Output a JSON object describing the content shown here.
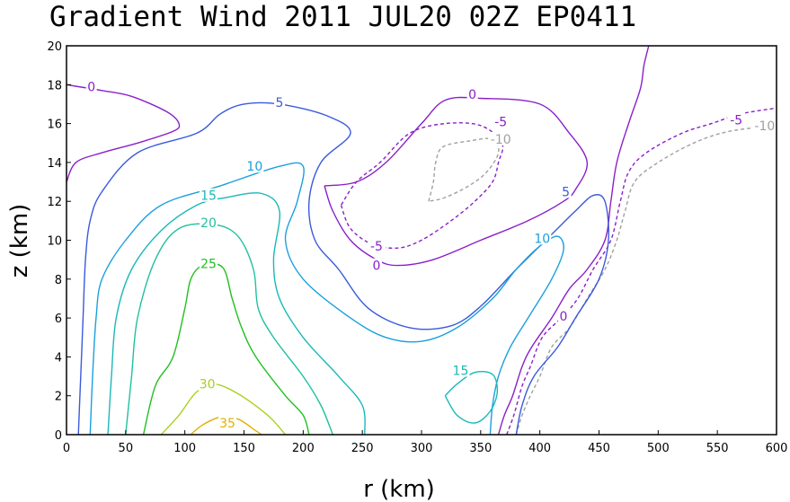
{
  "chart_data": {
    "type": "contour",
    "title": "Gradient Wind 2011 JUL20 02Z  EP0411",
    "xlabel": "r (km)",
    "ylabel": "z (km)",
    "xlim": [
      0,
      600
    ],
    "ylim": [
      0,
      20
    ],
    "xticks": [
      0,
      50,
      100,
      150,
      200,
      250,
      300,
      350,
      400,
      450,
      500,
      550,
      600
    ],
    "yticks": [
      0,
      2,
      4,
      6,
      8,
      10,
      12,
      14,
      16,
      18,
      20
    ],
    "contours": [
      {
        "level": 0,
        "label": "0",
        "color": "#8a20c8",
        "dashed": false,
        "points": [
          [
            0,
            13
          ],
          [
            8,
            14
          ],
          [
            30,
            14.5
          ],
          [
            60,
            15
          ],
          [
            90,
            15.6
          ],
          [
            95,
            16
          ],
          [
            85,
            16.6
          ],
          [
            55,
            17.4
          ],
          [
            30,
            17.7
          ],
          [
            10,
            17.9
          ],
          [
            0,
            18
          ]
        ]
      },
      {
        "level": 0,
        "label": "0",
        "color": "#8a20c8",
        "dashed": false,
        "points": [
          [
            218,
            12.8
          ],
          [
            225,
            11.5
          ],
          [
            240,
            10
          ],
          [
            262,
            9
          ],
          [
            280,
            8.7
          ],
          [
            310,
            9
          ],
          [
            350,
            10
          ],
          [
            390,
            11
          ],
          [
            420,
            12
          ],
          [
            430,
            12.6
          ],
          [
            440,
            14
          ],
          [
            425,
            15.5
          ],
          [
            400,
            17
          ],
          [
            350,
            17.3
          ],
          [
            320,
            17.2
          ],
          [
            300,
            16
          ],
          [
            270,
            14
          ],
          [
            245,
            13
          ],
          [
            218,
            12.8
          ]
        ]
      },
      {
        "level": 0,
        "label": "0",
        "color": "#8a20c8",
        "dashed": false,
        "points": [
          [
            365,
            0
          ],
          [
            370,
            1
          ],
          [
            377,
            2
          ],
          [
            385,
            3.5
          ],
          [
            393,
            4.5
          ],
          [
            410,
            6
          ],
          [
            425,
            7.5
          ],
          [
            440,
            8.5
          ],
          [
            455,
            10
          ],
          [
            460,
            12
          ],
          [
            465,
            14
          ],
          [
            475,
            16
          ],
          [
            485,
            17.8
          ],
          [
            488,
            19
          ],
          [
            492,
            20
          ]
        ]
      },
      {
        "level": -5,
        "label": "-5",
        "color": "#8a20c8",
        "dashed": true,
        "points": [
          [
            232,
            11.8
          ],
          [
            240,
            10.6
          ],
          [
            258,
            9.8
          ],
          [
            280,
            9.6
          ],
          [
            300,
            10
          ],
          [
            325,
            11
          ],
          [
            345,
            12
          ],
          [
            360,
            13
          ],
          [
            365,
            14
          ],
          [
            368,
            15
          ],
          [
            350,
            15.9
          ],
          [
            320,
            16
          ],
          [
            290,
            15.5
          ],
          [
            265,
            14
          ],
          [
            245,
            13
          ],
          [
            232,
            11.8
          ]
        ]
      },
      {
        "level": -5,
        "label": "-5",
        "color": "#8a20c8",
        "dashed": true,
        "points": [
          [
            372,
            0
          ],
          [
            378,
            1
          ],
          [
            385,
            2.5
          ],
          [
            392,
            3.5
          ],
          [
            402,
            5
          ],
          [
            418,
            6
          ],
          [
            432,
            7
          ],
          [
            445,
            8.5
          ],
          [
            460,
            10
          ],
          [
            468,
            12
          ],
          [
            475,
            13.5
          ],
          [
            490,
            14.5
          ],
          [
            520,
            15.5
          ],
          [
            545,
            16
          ],
          [
            570,
            16.5
          ],
          [
            600,
            16.8
          ]
        ]
      },
      {
        "level": -10,
        "label": "-10",
        "color": "#a0a0a0",
        "dashed": true,
        "points": [
          [
            306,
            12
          ],
          [
            310,
            13
          ],
          [
            312,
            14
          ],
          [
            318,
            14.8
          ],
          [
            340,
            15.1
          ],
          [
            360,
            15.2
          ],
          [
            365,
            14.5
          ],
          [
            355,
            13.5
          ],
          [
            340,
            12.8
          ],
          [
            320,
            12.2
          ],
          [
            306,
            12
          ]
        ]
      },
      {
        "level": -10,
        "label": "-10",
        "color": "#a0a0a0",
        "dashed": true,
        "points": [
          [
            380,
            0
          ],
          [
            385,
            1
          ],
          [
            392,
            2
          ],
          [
            400,
            3
          ],
          [
            410,
            4.5
          ],
          [
            425,
            5.5
          ],
          [
            440,
            7
          ],
          [
            455,
            8.5
          ],
          [
            465,
            10
          ],
          [
            472,
            11.5
          ],
          [
            480,
            13
          ],
          [
            500,
            14
          ],
          [
            530,
            15
          ],
          [
            560,
            15.6
          ],
          [
            600,
            15.9
          ]
        ]
      },
      {
        "level": 5,
        "label": "5",
        "color": "#3a5adc",
        "dashed": false,
        "points": [
          [
            10,
            0
          ],
          [
            12,
            3
          ],
          [
            14,
            6
          ],
          [
            16,
            9
          ],
          [
            20,
            11
          ],
          [
            30,
            12.5
          ],
          [
            60,
            14.5
          ],
          [
            110,
            15.5
          ],
          [
            130,
            16.5
          ],
          [
            150,
            17
          ],
          [
            180,
            17
          ],
          [
            220,
            16.4
          ],
          [
            240,
            15.5
          ],
          [
            215,
            14
          ],
          [
            205,
            12
          ],
          [
            210,
            10
          ],
          [
            230,
            8.5
          ],
          [
            255,
            6.5
          ],
          [
            290,
            5.5
          ],
          [
            325,
            5.6
          ],
          [
            350,
            6.6
          ],
          [
            380,
            8.5
          ],
          [
            410,
            10.3
          ],
          [
            430,
            11.5
          ],
          [
            445,
            12.3
          ],
          [
            455,
            12
          ],
          [
            458,
            10
          ],
          [
            450,
            8
          ],
          [
            430,
            6
          ],
          [
            415,
            4.5
          ],
          [
            395,
            3
          ],
          [
            385,
            1.5
          ],
          [
            380,
            0
          ]
        ]
      },
      {
        "level": 10,
        "label": "10",
        "color": "#1aa0dc",
        "dashed": false,
        "points": [
          [
            20,
            0
          ],
          [
            22,
            3
          ],
          [
            25,
            6
          ],
          [
            30,
            8
          ],
          [
            50,
            10
          ],
          [
            80,
            11.8
          ],
          [
            130,
            12.8
          ],
          [
            180,
            13.8
          ],
          [
            200,
            13.8
          ],
          [
            195,
            12
          ],
          [
            185,
            10
          ],
          [
            200,
            8
          ],
          [
            240,
            6
          ],
          [
            270,
            5
          ],
          [
            300,
            4.8
          ],
          [
            330,
            5.5
          ],
          [
            360,
            7
          ],
          [
            380,
            8.5
          ],
          [
            400,
            9.7
          ],
          [
            415,
            10.2
          ],
          [
            420,
            9.5
          ],
          [
            410,
            8
          ],
          [
            390,
            6
          ],
          [
            375,
            4.5
          ],
          [
            365,
            3
          ],
          [
            360,
            1.5
          ],
          [
            358,
            0
          ]
        ]
      },
      {
        "level": 15,
        "label": "15",
        "color": "#1ab8b8",
        "dashed": false,
        "points": [
          [
            35,
            0
          ],
          [
            38,
            3
          ],
          [
            42,
            6
          ],
          [
            55,
            8.5
          ],
          [
            80,
            10.5
          ],
          [
            110,
            11.8
          ],
          [
            135,
            12.2
          ],
          [
            165,
            12.4
          ],
          [
            180,
            11.5
          ],
          [
            175,
            9
          ],
          [
            180,
            7
          ],
          [
            200,
            5
          ],
          [
            230,
            3
          ],
          [
            250,
            1.5
          ],
          [
            252,
            0
          ]
        ]
      },
      {
        "level": 15,
        "label": "15",
        "color": "#1ab8b8",
        "dashed": false,
        "points": [
          [
            320,
            2
          ],
          [
            330,
            2.6
          ],
          [
            345,
            3.2
          ],
          [
            360,
            3.1
          ],
          [
            364,
            2.2
          ],
          [
            358,
            1.2
          ],
          [
            345,
            0.6
          ],
          [
            330,
            1
          ],
          [
            320,
            2
          ]
        ]
      },
      {
        "level": 20,
        "label": "20",
        "color": "#20c0a0",
        "dashed": false,
        "points": [
          [
            50,
            0
          ],
          [
            55,
            3
          ],
          [
            60,
            6
          ],
          [
            75,
            9
          ],
          [
            95,
            10.6
          ],
          [
            125,
            10.8
          ],
          [
            145,
            10.2
          ],
          [
            158,
            8.5
          ],
          [
            162,
            6.5
          ],
          [
            175,
            5
          ],
          [
            200,
            3
          ],
          [
            215,
            1.5
          ],
          [
            225,
            0
          ]
        ]
      },
      {
        "level": 25,
        "label": "25",
        "color": "#20c020",
        "dashed": false,
        "points": [
          [
            65,
            0
          ],
          [
            75,
            2.5
          ],
          [
            90,
            4
          ],
          [
            100,
            6.5
          ],
          [
            105,
            8
          ],
          [
            115,
            8.7
          ],
          [
            132,
            8.6
          ],
          [
            140,
            7
          ],
          [
            148,
            5.5
          ],
          [
            160,
            4
          ],
          [
            185,
            2
          ],
          [
            200,
            1
          ],
          [
            205,
            0
          ]
        ]
      },
      {
        "level": 30,
        "label": "30",
        "color": "#a8d020",
        "dashed": false,
        "points": [
          [
            80,
            0
          ],
          [
            95,
            1
          ],
          [
            110,
            2.2
          ],
          [
            125,
            2.6
          ],
          [
            145,
            2.1
          ],
          [
            170,
            1
          ],
          [
            185,
            0
          ]
        ]
      },
      {
        "level": 35,
        "label": "35",
        "color": "#e0b000",
        "dashed": false,
        "points": [
          [
            105,
            0
          ],
          [
            115,
            0.5
          ],
          [
            130,
            0.9
          ],
          [
            145,
            0.8
          ],
          [
            160,
            0.2
          ],
          [
            165,
            0
          ]
        ]
      }
    ],
    "labels": [
      {
        "text": "0",
        "x": 21,
        "y": 17.9,
        "color": "#8a20c8"
      },
      {
        "text": "0",
        "x": 343,
        "y": 17.5,
        "color": "#8a20c8"
      },
      {
        "text": "0",
        "x": 262,
        "y": 8.7,
        "color": "#8a20c8"
      },
      {
        "text": "0",
        "x": 420,
        "y": 6.1,
        "color": "#8a20c8"
      },
      {
        "text": "-5",
        "x": 367,
        "y": 16.1,
        "color": "#8a20c8"
      },
      {
        "text": "-5",
        "x": 262,
        "y": 9.7,
        "color": "#8a20c8"
      },
      {
        "text": "-5",
        "x": 566,
        "y": 16.2,
        "color": "#8a20c8"
      },
      {
        "text": "-10",
        "x": 367,
        "y": 15.2,
        "color": "#a0a0a0"
      },
      {
        "text": "-10",
        "x": 590,
        "y": 15.9,
        "color": "#a0a0a0"
      },
      {
        "text": "5",
        "x": 180,
        "y": 17.1,
        "color": "#3a5adc"
      },
      {
        "text": "5",
        "x": 422,
        "y": 12.5,
        "color": "#3a5adc"
      },
      {
        "text": "10",
        "x": 159,
        "y": 13.8,
        "color": "#1aa0dc"
      },
      {
        "text": "10",
        "x": 402,
        "y": 10.1,
        "color": "#1aa0dc"
      },
      {
        "text": "15",
        "x": 120,
        "y": 12.3,
        "color": "#1ab8b8"
      },
      {
        "text": "15",
        "x": 333,
        "y": 3.3,
        "color": "#1ab8b8"
      },
      {
        "text": "20",
        "x": 120,
        "y": 10.9,
        "color": "#20c0a0"
      },
      {
        "text": "25",
        "x": 120,
        "y": 8.8,
        "color": "#20c020"
      },
      {
        "text": "30",
        "x": 119,
        "y": 2.6,
        "color": "#a8d020"
      },
      {
        "text": "35",
        "x": 136,
        "y": 0.6,
        "color": "#e0b000"
      }
    ]
  }
}
